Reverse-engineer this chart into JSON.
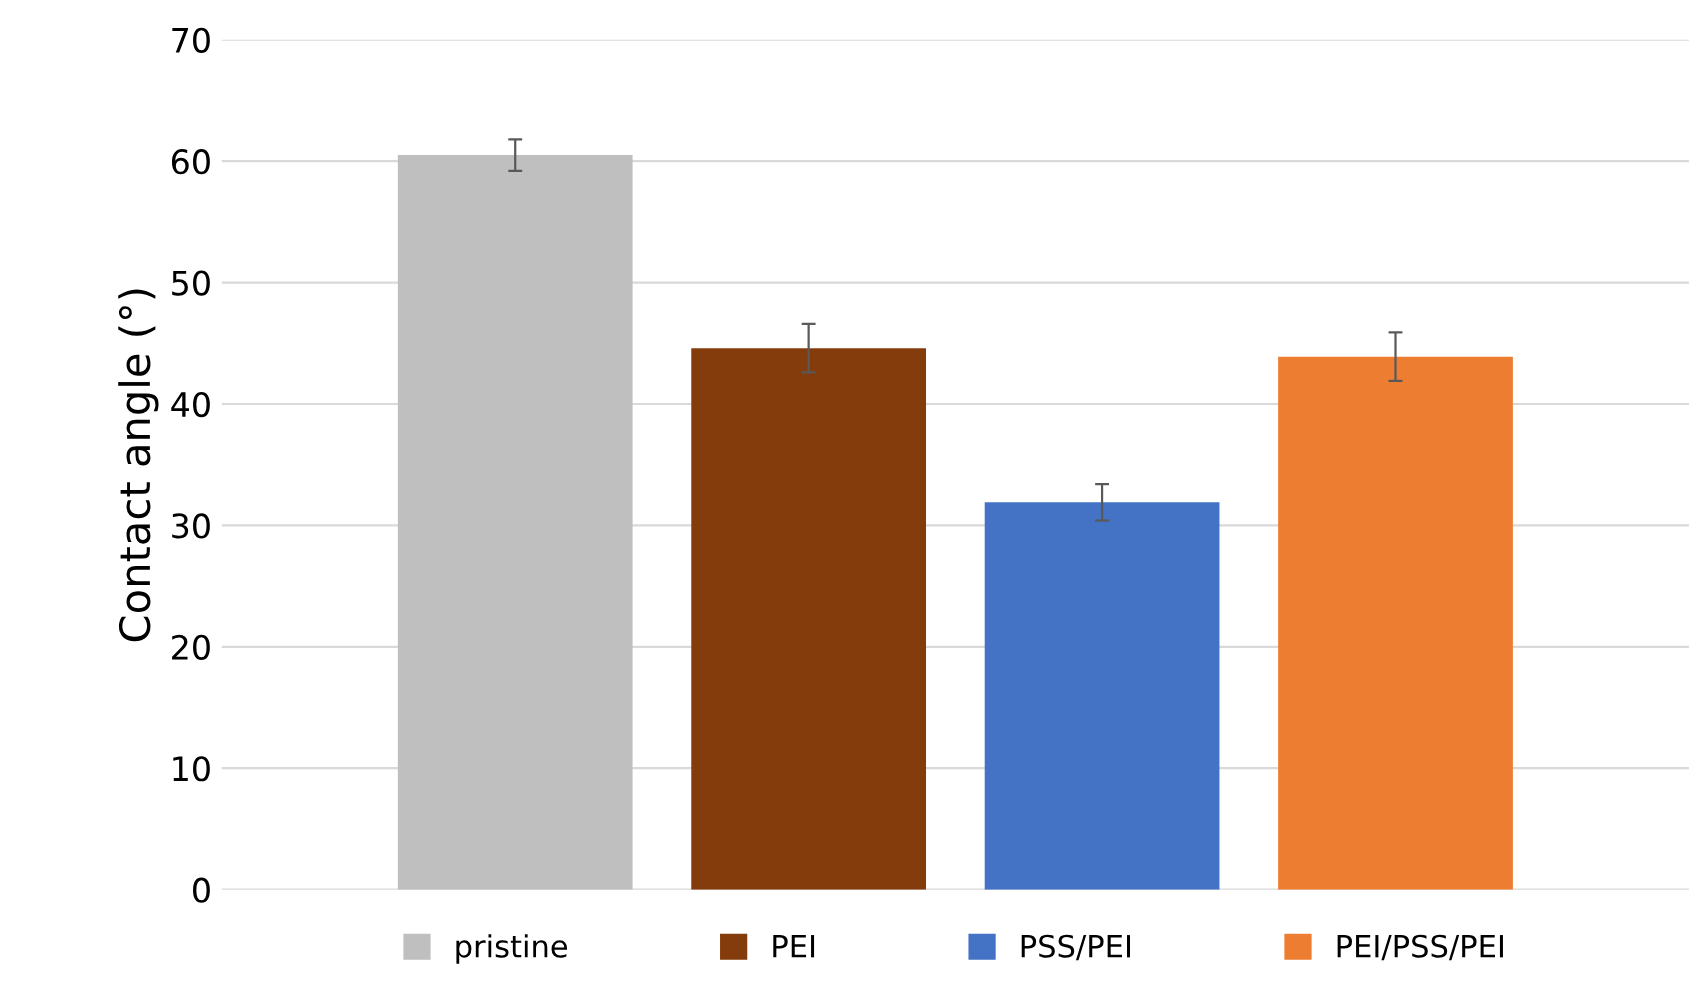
{
  "chart_data": {
    "type": "bar",
    "ylabel": "Contact angle (°)",
    "categories": [
      null
    ],
    "series": [
      {
        "name": "pristine",
        "color": "#bfbfbf",
        "values": [
          60.5
        ],
        "errors": [
          1.3
        ]
      },
      {
        "name": "PEI",
        "color": "#843c0c",
        "values": [
          44.6
        ],
        "errors": [
          2.0
        ]
      },
      {
        "name": "PSS/PEI",
        "color": "#4472c4",
        "values": [
          31.9
        ],
        "errors": [
          1.5
        ]
      },
      {
        "name": "PEI/PSS/PEI",
        "color": "#ed7d31",
        "values": [
          43.9
        ],
        "errors": [
          2.0
        ]
      }
    ],
    "ylim": [
      0,
      70
    ],
    "yticks": [
      0,
      10,
      20,
      30,
      40,
      50,
      60,
      70
    ],
    "grid": "y",
    "legend": "bottom"
  }
}
